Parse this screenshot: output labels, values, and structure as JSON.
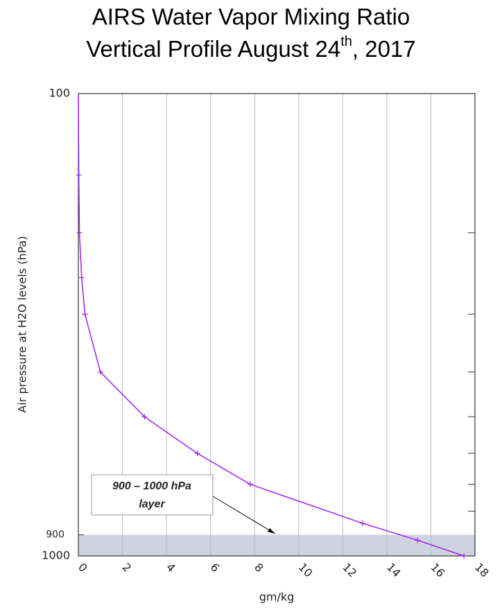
{
  "chart_data": {
    "type": "line",
    "title": {
      "line1": "AIRS Water Vapor Mixing Ratio",
      "line2": [
        "Vertical Profile August 24",
        "th",
        ", 2017"
      ]
    },
    "x_label": "gm/kg",
    "y_label": "Air pressure at H2O levels (hPa)",
    "x": [
      0,
      0.02,
      0.05,
      0.15,
      0.3,
      1.0,
      3.0,
      5.4,
      7.8,
      12.9,
      15.4,
      17.5
    ],
    "y": [
      100,
      150,
      200,
      250,
      300,
      400,
      500,
      600,
      700,
      850,
      925,
      1000
    ],
    "color": "#a020f0",
    "xlim": [
      0,
      18
    ],
    "xticks": [
      0,
      2,
      4,
      6,
      8,
      10,
      12,
      14,
      16,
      18
    ],
    "ylim": [
      1000,
      100
    ],
    "y_log": true,
    "yticks": [
      100,
      900,
      1000
    ],
    "y_minor_ticks": [
      200,
      300,
      400,
      500,
      600,
      700,
      800
    ],
    "grid": "x",
    "shaded_range": {
      "range": [
        900,
        1000
      ],
      "color": "#cdd3e0"
    },
    "annotation": {
      "lines": [
        "900 – 1000 hPa",
        "layer"
      ]
    }
  }
}
